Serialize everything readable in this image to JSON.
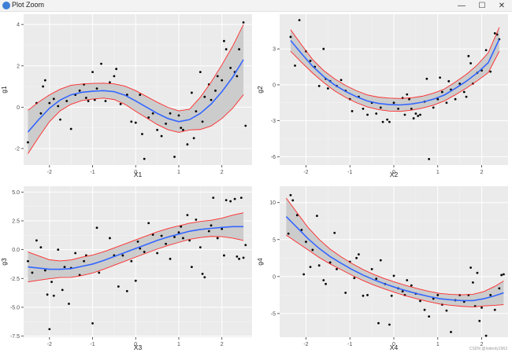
{
  "window": {
    "title": "Plot Zoom",
    "min_glyph": "—",
    "max_glyph": "☐",
    "close_glyph": "✕"
  },
  "watermark": "CSDN @Indenty1963",
  "colors": {
    "panel": "#ebebeb",
    "grid": "#ffffff",
    "fit": "#3366ff",
    "ribbon": "#c9c9c9",
    "bounds": "#ff2a2a",
    "points": "#000000"
  },
  "chart_data": [
    {
      "type": "scatter",
      "xlabel": "X1",
      "ylabel": "g1",
      "xlim": [
        -2.6,
        2.7
      ],
      "ylim": [
        -2.8,
        4.5
      ],
      "xticks": [
        -2,
        -1,
        0,
        1,
        2
      ],
      "yticks": [
        -2,
        0,
        2,
        4
      ],
      "points": [
        [
          -2.5,
          -1.7
        ],
        [
          -2.3,
          0.2
        ],
        [
          -2.2,
          -0.3
        ],
        [
          -2.15,
          1
        ],
        [
          -2.1,
          1.3
        ],
        [
          -2.0,
          0.2
        ],
        [
          -1.9,
          0.4
        ],
        [
          -1.8,
          0.05
        ],
        [
          -1.75,
          -0.6
        ],
        [
          -1.6,
          0.3
        ],
        [
          -1.5,
          -1.05
        ],
        [
          -1.4,
          0.6
        ],
        [
          -1.3,
          0.8
        ],
        [
          -1.2,
          1.1
        ],
        [
          -1.15,
          0.45
        ],
        [
          -1.1,
          0.3
        ],
        [
          -1.0,
          1.7
        ],
        [
          -0.95,
          0.35
        ],
        [
          -0.9,
          0.9
        ],
        [
          -0.8,
          2.1
        ],
        [
          -0.7,
          0.3
        ],
        [
          -0.6,
          1.2
        ],
        [
          -0.5,
          1.5
        ],
        [
          -0.45,
          1.85
        ],
        [
          -0.35,
          0.15
        ],
        [
          -0.2,
          0.6
        ],
        [
          -0.1,
          -0.7
        ],
        [
          0.0,
          -0.75
        ],
        [
          0.1,
          0.6
        ],
        [
          0.15,
          -1.3
        ],
        [
          0.2,
          -2.5
        ],
        [
          0.3,
          -0.5
        ],
        [
          0.4,
          -0.3
        ],
        [
          0.5,
          -1.1
        ],
        [
          0.6,
          -1.4
        ],
        [
          0.7,
          -0.8
        ],
        [
          0.8,
          -0.3
        ],
        [
          0.9,
          -2.4
        ],
        [
          1.0,
          -0.4
        ],
        [
          1.05,
          -1.0
        ],
        [
          1.1,
          -1.1
        ],
        [
          1.2,
          -1.8
        ],
        [
          1.3,
          0.7
        ],
        [
          1.35,
          -1.5
        ],
        [
          1.4,
          -0.2
        ],
        [
          1.5,
          1.7
        ],
        [
          1.55,
          -0.7
        ],
        [
          1.6,
          0.5
        ],
        [
          1.7,
          1.1
        ],
        [
          1.75,
          0.35
        ],
        [
          1.85,
          0.8
        ],
        [
          1.9,
          1.5
        ],
        [
          2.0,
          1.3
        ],
        [
          2.05,
          3.2
        ],
        [
          2.1,
          2.8
        ],
        [
          2.2,
          1.9
        ],
        [
          2.3,
          1.7
        ],
        [
          2.35,
          1.5
        ],
        [
          2.4,
          2.8
        ],
        [
          2.5,
          4.1
        ],
        [
          2.55,
          -0.9
        ]
      ],
      "fit": [
        [
          -2.5,
          -1.2
        ],
        [
          -2.25,
          -0.6
        ],
        [
          -2.0,
          -0.05
        ],
        [
          -1.75,
          0.35
        ],
        [
          -1.5,
          0.6
        ],
        [
          -1.25,
          0.72
        ],
        [
          -1.0,
          0.77
        ],
        [
          -0.75,
          0.8
        ],
        [
          -0.5,
          0.75
        ],
        [
          -0.25,
          0.58
        ],
        [
          0.0,
          0.3
        ],
        [
          0.25,
          0.0
        ],
        [
          0.5,
          -0.3
        ],
        [
          0.75,
          -0.55
        ],
        [
          1.0,
          -0.7
        ],
        [
          1.25,
          -0.6
        ],
        [
          1.5,
          -0.3
        ],
        [
          1.75,
          0.15
        ],
        [
          2.0,
          0.75
        ],
        [
          2.25,
          1.45
        ],
        [
          2.5,
          2.3
        ]
      ],
      "band": [
        1.05,
        0.55,
        0.4,
        0.35,
        0.5,
        0.55,
        0.5,
        1.2,
        1.7
      ]
    },
    {
      "type": "scatter",
      "xlabel": "X2",
      "ylabel": "g2",
      "xlim": [
        -2.6,
        2.6
      ],
      "ylim": [
        -6.7,
        5.9
      ],
      "xticks": [
        -2,
        -1,
        0,
        1,
        2
      ],
      "yticks": [
        -6,
        -3,
        0,
        3
      ],
      "points": [
        [
          -2.35,
          4.0
        ],
        [
          -2.25,
          1.6
        ],
        [
          -2.15,
          5.4
        ],
        [
          -2.0,
          2.8
        ],
        [
          -1.9,
          2.0
        ],
        [
          -1.8,
          1.5
        ],
        [
          -1.7,
          -0.1
        ],
        [
          -1.6,
          3.0
        ],
        [
          -1.55,
          0.5
        ],
        [
          -1.5,
          -0.3
        ],
        [
          -1.45,
          0.3
        ],
        [
          -1.3,
          -0.1
        ],
        [
          -1.2,
          0.4
        ],
        [
          -1.1,
          -0.5
        ],
        [
          -1.0,
          -1.2
        ],
        [
          -0.95,
          -2.2
        ],
        [
          -0.8,
          -1.0
        ],
        [
          -0.7,
          -2.0
        ],
        [
          -0.6,
          -2.5
        ],
        [
          -0.5,
          -1.5
        ],
        [
          -0.4,
          -2.4
        ],
        [
          -0.3,
          -1.9
        ],
        [
          -0.25,
          -3.1
        ],
        [
          -0.15,
          -2.9
        ],
        [
          -0.1,
          -3.1
        ],
        [
          0.0,
          -1.5
        ],
        [
          0.1,
          -2.0
        ],
        [
          0.2,
          -1.1
        ],
        [
          0.25,
          -2.5
        ],
        [
          0.3,
          -0.8
        ],
        [
          0.35,
          -1.2
        ],
        [
          0.4,
          -2.0
        ],
        [
          0.45,
          -2.8
        ],
        [
          0.5,
          -2.4
        ],
        [
          0.55,
          -2.6
        ],
        [
          0.6,
          -2.5
        ],
        [
          0.7,
          -1.4
        ],
        [
          0.75,
          0.5
        ],
        [
          0.8,
          -6.2
        ],
        [
          0.9,
          -1.9
        ],
        [
          1.0,
          -1.2
        ],
        [
          1.05,
          0.6
        ],
        [
          1.1,
          -0.6
        ],
        [
          1.2,
          -1.5
        ],
        [
          1.25,
          0.3
        ],
        [
          1.3,
          -0.4
        ],
        [
          1.4,
          -1.2
        ],
        [
          1.5,
          0.1
        ],
        [
          1.6,
          -0.6
        ],
        [
          1.65,
          -1.0
        ],
        [
          1.7,
          2.4
        ],
        [
          1.75,
          1.8
        ],
        [
          1.8,
          0.1
        ],
        [
          1.9,
          1.0
        ],
        [
          2.0,
          1.2
        ],
        [
          2.1,
          2.9
        ],
        [
          2.2,
          1.1
        ],
        [
          2.3,
          4.3
        ],
        [
          2.35,
          4.2
        ],
        [
          2.4,
          3.8
        ]
      ],
      "fit": [
        [
          -2.35,
          3.7
        ],
        [
          -2.1,
          2.6
        ],
        [
          -1.85,
          1.55
        ],
        [
          -1.6,
          0.7
        ],
        [
          -1.35,
          0.0
        ],
        [
          -1.1,
          -0.55
        ],
        [
          -0.85,
          -1.0
        ],
        [
          -0.6,
          -1.35
        ],
        [
          -0.35,
          -1.55
        ],
        [
          -0.1,
          -1.65
        ],
        [
          0.15,
          -1.68
        ],
        [
          0.4,
          -1.6
        ],
        [
          0.65,
          -1.45
        ],
        [
          0.9,
          -1.2
        ],
        [
          1.15,
          -0.85
        ],
        [
          1.4,
          -0.3
        ],
        [
          1.65,
          0.3
        ],
        [
          1.9,
          1.0
        ],
        [
          2.15,
          1.85
        ],
        [
          2.4,
          3.8
        ]
      ],
      "band": [
        0.9,
        0.5,
        0.5,
        0.5,
        0.55,
        0.5,
        0.5,
        0.6,
        1.0
      ]
    },
    {
      "type": "scatter",
      "xlabel": "X3",
      "ylabel": "g3",
      "xlim": [
        -2.6,
        2.7
      ],
      "ylim": [
        -7.6,
        5.5
      ],
      "xticks": [
        -2,
        -1,
        0,
        1,
        2
      ],
      "yticks": [
        -7.5,
        -5.0,
        -2.5,
        0.0,
        2.5,
        5.0
      ],
      "points": [
        [
          -2.5,
          -1.0
        ],
        [
          -2.4,
          -2.0
        ],
        [
          -2.3,
          0.8
        ],
        [
          -2.2,
          0.2
        ],
        [
          -2.1,
          -1.8
        ],
        [
          -2.05,
          -3.9
        ],
        [
          -2.0,
          -6.9
        ],
        [
          -1.95,
          -2.8
        ],
        [
          -1.9,
          -4.0
        ],
        [
          -1.8,
          0.0
        ],
        [
          -1.7,
          -3.5
        ],
        [
          -1.65,
          -1.5
        ],
        [
          -1.55,
          -4.7
        ],
        [
          -1.5,
          -1.6
        ],
        [
          -1.4,
          -0.3
        ],
        [
          -1.3,
          -2.2
        ],
        [
          -1.2,
          -1.0
        ],
        [
          -1.15,
          -0.5
        ],
        [
          -1.0,
          -6.4
        ],
        [
          -0.9,
          1.9
        ],
        [
          -0.85,
          -2.0
        ],
        [
          -0.6,
          1.0
        ],
        [
          -0.5,
          -0.5
        ],
        [
          -0.4,
          -3.2
        ],
        [
          -0.3,
          -0.5
        ],
        [
          -0.2,
          -3.6
        ],
        [
          -0.1,
          -1.0
        ],
        [
          0.0,
          -2.7
        ],
        [
          0.05,
          0.7
        ],
        [
          0.1,
          0.1
        ],
        [
          0.2,
          -0.2
        ],
        [
          0.3,
          2.3
        ],
        [
          0.4,
          1.3
        ],
        [
          0.5,
          -0.3
        ],
        [
          0.6,
          1.2
        ],
        [
          0.7,
          0.5
        ],
        [
          0.8,
          -0.8
        ],
        [
          0.9,
          1.1
        ],
        [
          1.0,
          1.5
        ],
        [
          1.05,
          2.0
        ],
        [
          1.1,
          1.0
        ],
        [
          1.2,
          3.0
        ],
        [
          1.25,
          0.8
        ],
        [
          1.3,
          -1.5
        ],
        [
          1.4,
          2.6
        ],
        [
          1.5,
          0.2
        ],
        [
          1.55,
          -2.1
        ],
        [
          1.6,
          -2.4
        ],
        [
          1.7,
          1.6
        ],
        [
          1.75,
          2.1
        ],
        [
          1.8,
          4.5
        ],
        [
          1.9,
          1.0
        ],
        [
          2.0,
          1.8
        ],
        [
          2.05,
          -0.5
        ],
        [
          2.1,
          4.3
        ],
        [
          2.2,
          4.2
        ],
        [
          2.3,
          4.4
        ],
        [
          2.35,
          -0.6
        ],
        [
          2.4,
          -0.8
        ],
        [
          2.45,
          4.5
        ],
        [
          2.5,
          -0.7
        ],
        [
          2.55,
          0.4
        ]
      ],
      "fit": [
        [
          -2.5,
          -1.5
        ],
        [
          -2.25,
          -1.6
        ],
        [
          -2.0,
          -1.7
        ],
        [
          -1.75,
          -1.7
        ],
        [
          -1.5,
          -1.65
        ],
        [
          -1.25,
          -1.45
        ],
        [
          -1.0,
          -1.25
        ],
        [
          -0.75,
          -0.95
        ],
        [
          -0.5,
          -0.6
        ],
        [
          -0.25,
          -0.25
        ],
        [
          0.0,
          0.1
        ],
        [
          0.25,
          0.45
        ],
        [
          0.5,
          0.8
        ],
        [
          0.75,
          1.1
        ],
        [
          1.0,
          1.35
        ],
        [
          1.25,
          1.6
        ],
        [
          1.5,
          1.75
        ],
        [
          1.75,
          1.85
        ],
        [
          2.0,
          1.93
        ],
        [
          2.25,
          2.0
        ],
        [
          2.5,
          2.0
        ]
      ],
      "band": [
        1.3,
        0.7,
        0.8,
        0.75,
        0.75,
        0.75,
        0.7,
        0.7,
        1.2
      ]
    },
    {
      "type": "scatter",
      "xlabel": "X4",
      "ylabel": "g4",
      "xlim": [
        -2.6,
        2.6
      ],
      "ylim": [
        -8.2,
        12.2
      ],
      "xticks": [
        -2,
        -1,
        0,
        1,
        2
      ],
      "yticks": [
        -5,
        0,
        5,
        10
      ],
      "points": [
        [
          -2.4,
          5.8
        ],
        [
          -2.35,
          11.0
        ],
        [
          -2.3,
          10.3
        ],
        [
          -2.2,
          8.3
        ],
        [
          -2.1,
          6.3
        ],
        [
          -2.05,
          0.3
        ],
        [
          -2.0,
          4.7
        ],
        [
          -1.9,
          1.3
        ],
        [
          -1.85,
          3.6
        ],
        [
          -1.75,
          8.2
        ],
        [
          -1.7,
          1.5
        ],
        [
          -1.6,
          -0.5
        ],
        [
          -1.55,
          -1.0
        ],
        [
          -1.45,
          1.9
        ],
        [
          -1.35,
          5.9
        ],
        [
          -1.3,
          1.0
        ],
        [
          -1.1,
          -2.2
        ],
        [
          -1.0,
          2.0
        ],
        [
          -0.9,
          -0.2
        ],
        [
          -0.85,
          2.5
        ],
        [
          -0.8,
          3.0
        ],
        [
          -0.7,
          -2.6
        ],
        [
          -0.6,
          -2.5
        ],
        [
          -0.5,
          1.0
        ],
        [
          -0.4,
          -0.3
        ],
        [
          -0.35,
          -6.3
        ],
        [
          -0.3,
          2.2
        ],
        [
          -0.2,
          -1.0
        ],
        [
          -0.1,
          -6.5
        ],
        [
          -0.05,
          -2.6
        ],
        [
          0.0,
          0.1
        ],
        [
          0.1,
          -1.6
        ],
        [
          0.2,
          -2.0
        ],
        [
          0.25,
          -2.5
        ],
        [
          0.3,
          -0.5
        ],
        [
          0.4,
          -1.2
        ],
        [
          0.5,
          -2.3
        ],
        [
          0.6,
          -3.3
        ],
        [
          0.7,
          -4.5
        ],
        [
          0.8,
          -5.4
        ],
        [
          0.9,
          -3.0
        ],
        [
          1.0,
          -2.5
        ],
        [
          1.1,
          -3.8
        ],
        [
          1.2,
          -4.6
        ],
        [
          1.3,
          -7.5
        ],
        [
          1.4,
          -3.2
        ],
        [
          1.5,
          -2.5
        ],
        [
          1.6,
          -3.4
        ],
        [
          1.7,
          -2.5
        ],
        [
          1.75,
          1.2
        ],
        [
          1.8,
          -0.8
        ],
        [
          1.85,
          -4.0
        ],
        [
          1.9,
          0.5
        ],
        [
          1.95,
          -6.0
        ],
        [
          2.0,
          -4.2
        ],
        [
          2.1,
          -8.0
        ],
        [
          2.2,
          -2.5
        ],
        [
          2.3,
          -4.5
        ],
        [
          2.4,
          -1.6
        ],
        [
          2.45,
          0.2
        ],
        [
          2.5,
          0.3
        ]
      ],
      "fit": [
        [
          -2.45,
          8.1
        ],
        [
          -2.2,
          6.6
        ],
        [
          -1.95,
          5.1
        ],
        [
          -1.7,
          3.8
        ],
        [
          -1.45,
          2.7
        ],
        [
          -1.2,
          1.8
        ],
        [
          -0.95,
          0.95
        ],
        [
          -0.7,
          0.2
        ],
        [
          -0.45,
          -0.45
        ],
        [
          -0.2,
          -1.0
        ],
        [
          0.05,
          -1.5
        ],
        [
          0.3,
          -1.95
        ],
        [
          0.55,
          -2.35
        ],
        [
          0.8,
          -2.7
        ],
        [
          1.05,
          -3.0
        ],
        [
          1.3,
          -3.15
        ],
        [
          1.55,
          -3.25
        ],
        [
          1.8,
          -3.25
        ],
        [
          2.05,
          -3.0
        ],
        [
          2.3,
          -2.6
        ],
        [
          2.5,
          -2.2
        ]
      ],
      "band": [
        2.5,
        1.4,
        0.9,
        0.75,
        0.7,
        0.7,
        0.7,
        0.75,
        0.9,
        1.6
      ]
    }
  ]
}
